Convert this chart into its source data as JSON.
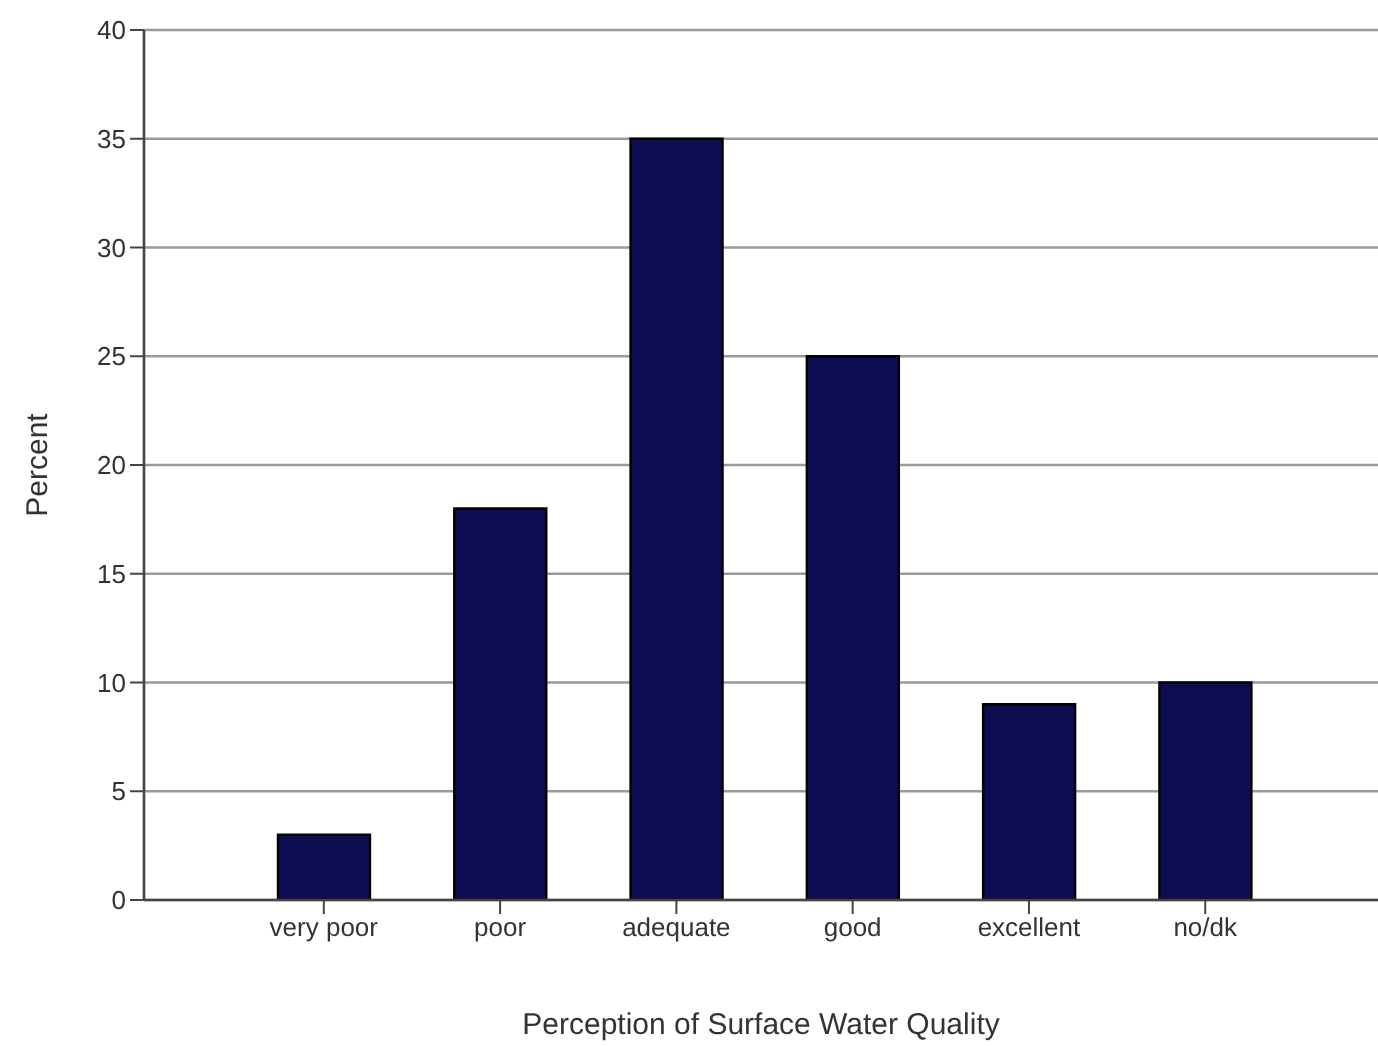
{
  "chart_data": {
    "type": "bar",
    "xlabel": "Perception of Surface Water Quality",
    "ylabel": "Percent",
    "categories": [
      "very poor",
      "poor",
      "adequate",
      "good",
      "excellent",
      "no/dk"
    ],
    "values": [
      3,
      18,
      35,
      25,
      9,
      10
    ],
    "color": "#0d0d52",
    "ylim": [
      0,
      40
    ],
    "yticks": [
      0,
      5,
      10,
      15,
      20,
      25,
      30,
      35,
      40
    ],
    "grid": "y"
  }
}
